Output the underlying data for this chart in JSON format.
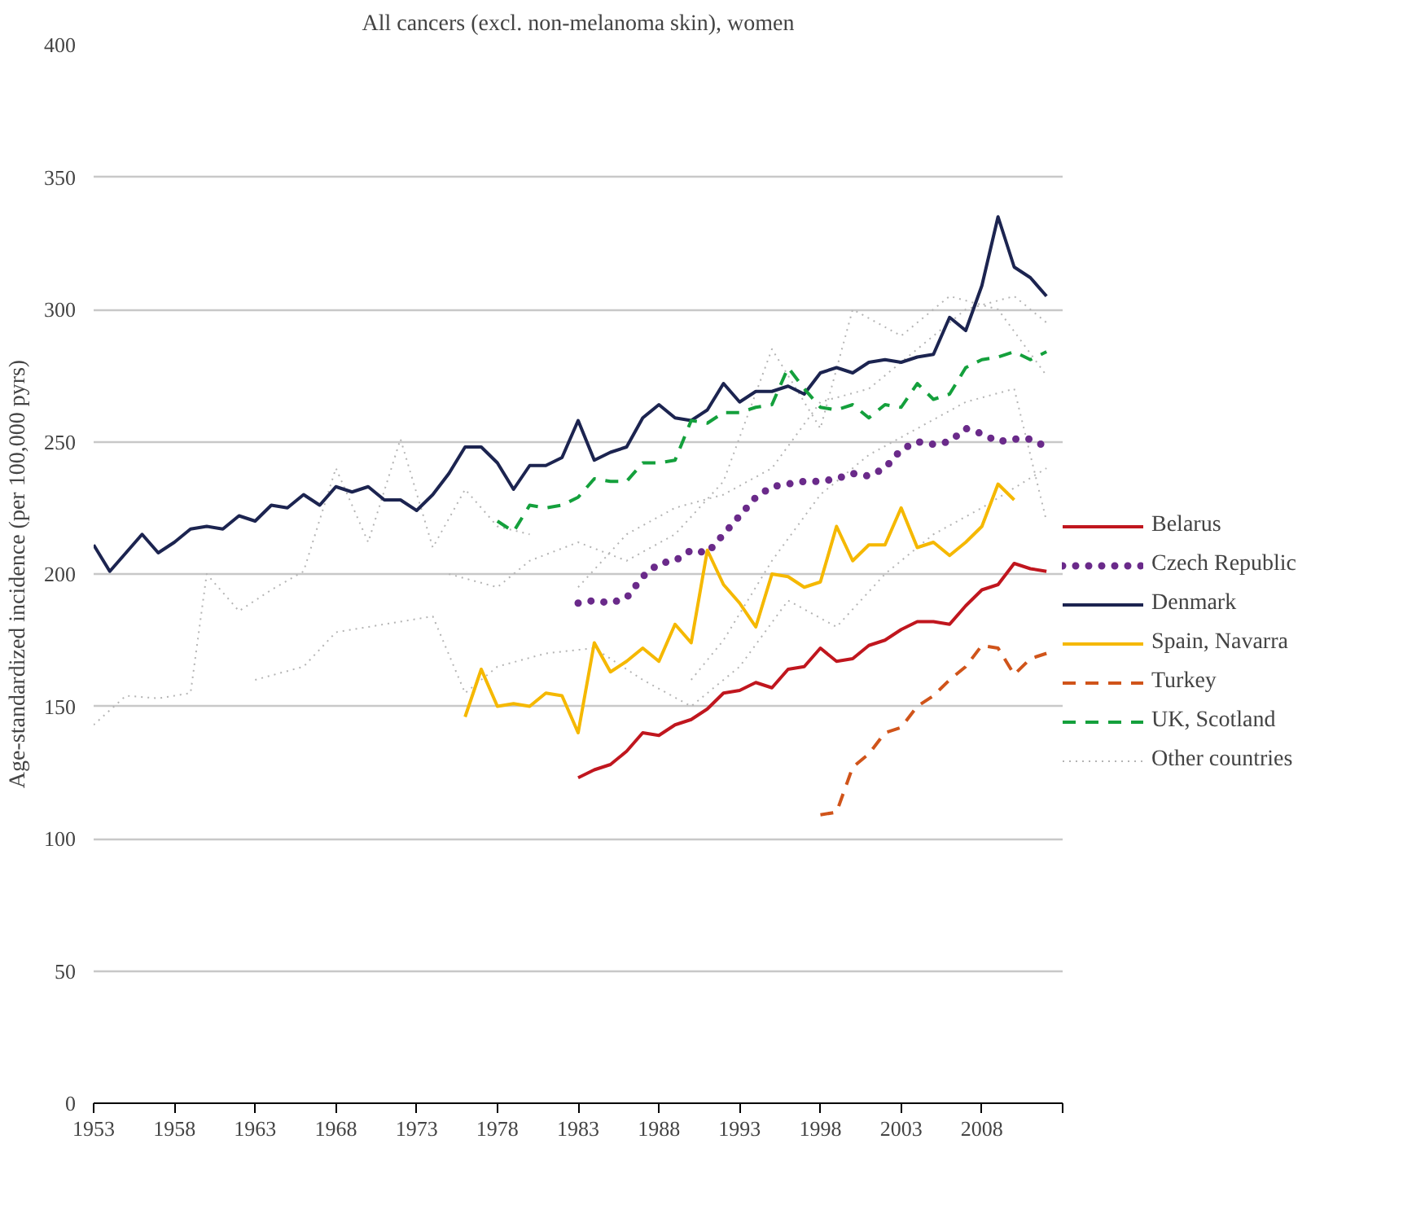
{
  "chart_data": {
    "type": "line",
    "title": "All cancers (excl. non-melanoma skin), women",
    "ylabel": "Age-standardized incidence (per 100,000 pyrs)",
    "xlim": [
      1953,
      2013
    ],
    "xticks": [
      1953,
      1958,
      1963,
      1968,
      1973,
      1978,
      1983,
      1988,
      1993,
      1998,
      2003,
      2008,
      {
        "value": 2013,
        "label": null
      }
    ],
    "ylim": [
      0,
      400
    ],
    "yticks": [
      0,
      50,
      100,
      150,
      200,
      250,
      300,
      350,
      400
    ],
    "grid": "y",
    "legend": "right",
    "marker": "none",
    "series": [
      {
        "name": "Other countries",
        "color": "#b4b4b4",
        "line_style": "dotted",
        "x": [
          1953,
          1955,
          1957,
          1959,
          1960,
          1962,
          1964,
          1966,
          1968,
          1970,
          1972,
          1974,
          1976,
          1978,
          1980
        ],
        "values": [
          143,
          154,
          153,
          155,
          200,
          186,
          194,
          201,
          240,
          212,
          251,
          210,
          232,
          218,
          215
        ]
      },
      {
        "color": "#b4b4b4",
        "line_style": "dotted",
        "x": [
          1963,
          1966,
          1968,
          1971,
          1974,
          1976,
          1978,
          1981,
          1984,
          1987,
          1990,
          1993,
          1996,
          1999,
          2002,
          2005,
          2008,
          2012
        ],
        "values": [
          160,
          165,
          178,
          181,
          184,
          155,
          165,
          170,
          172,
          160,
          150,
          165,
          190,
          180,
          200,
          215,
          225,
          240
        ]
      },
      {
        "color": "#b4b4b4",
        "line_style": "dotted",
        "x": [
          1975,
          1978,
          1980,
          1983,
          1986,
          1989,
          1992,
          1995,
          1998,
          2000,
          2003,
          2006,
          2009,
          2012
        ],
        "values": [
          200,
          195,
          205,
          212,
          205,
          215,
          235,
          285,
          255,
          300,
          290,
          305,
          300,
          275
        ]
      },
      {
        "color": "#b4b4b4",
        "line_style": "dotted",
        "x": [
          1983,
          1986,
          1989,
          1992,
          1995,
          1998,
          2001,
          2004,
          2007,
          2010,
          2012
        ],
        "values": [
          195,
          215,
          225,
          230,
          240,
          265,
          270,
          285,
          300,
          305,
          295
        ]
      },
      {
        "color": "#b4b4b4",
        "line_style": "dotted",
        "x": [
          1990,
          1992,
          1995,
          1998,
          2001,
          2004,
          2007,
          2010,
          2012
        ],
        "values": [
          160,
          175,
          205,
          230,
          245,
          255,
          265,
          270,
          220
        ]
      },
      {
        "name": "Belarus",
        "color": "#c0161e",
        "line_style": "solid",
        "x": [
          1983,
          1984,
          1985,
          1986,
          1987,
          1988,
          1989,
          1990,
          1991,
          1992,
          1993,
          1994,
          1995,
          1996,
          1997,
          1998,
          1999,
          2000,
          2001,
          2002,
          2003,
          2004,
          2005,
          2006,
          2007,
          2008,
          2009,
          2010,
          2011,
          2012
        ],
        "values": [
          123,
          126,
          128,
          133,
          140,
          139,
          143,
          145,
          149,
          155,
          156,
          159,
          157,
          164,
          165,
          172,
          167,
          168,
          173,
          175,
          179,
          182,
          182,
          181,
          188,
          194,
          196,
          204,
          202,
          201
        ]
      },
      {
        "name": "Czech Republic",
        "color": "#6a2a8a",
        "line_style": "dotted",
        "x": [
          1983,
          1984,
          1985,
          1986,
          1987,
          1988,
          1989,
          1990,
          1991,
          1992,
          1993,
          1994,
          1995,
          1996,
          1997,
          1998,
          1999,
          2000,
          2001,
          2002,
          2003,
          2004,
          2005,
          2006,
          2007,
          2008,
          2009,
          2010,
          2011,
          2012
        ],
        "values": [
          189,
          190,
          189,
          191,
          199,
          204,
          205,
          209,
          208,
          215,
          222,
          229,
          233,
          234,
          235,
          235,
          236,
          238,
          237,
          240,
          247,
          250,
          249,
          250,
          255,
          253,
          250,
          251,
          251,
          248
        ]
      },
      {
        "name": "Denmark",
        "color": "#1c2450",
        "line_style": "solid",
        "x": [
          1953,
          1954,
          1955,
          1956,
          1957,
          1958,
          1959,
          1960,
          1961,
          1962,
          1963,
          1964,
          1965,
          1966,
          1967,
          1968,
          1969,
          1970,
          1971,
          1972,
          1973,
          1974,
          1975,
          1976,
          1977,
          1978,
          1979,
          1980,
          1981,
          1982,
          1983,
          1984,
          1985,
          1986,
          1987,
          1988,
          1989,
          1990,
          1991,
          1992,
          1993,
          1994,
          1995,
          1996,
          1997,
          1998,
          1999,
          2000,
          2001,
          2002,
          2003,
          2004,
          2005,
          2006,
          2007,
          2008,
          2009,
          2010,
          2011,
          2012
        ],
        "values": [
          211,
          201,
          208,
          215,
          208,
          212,
          217,
          218,
          217,
          222,
          220,
          226,
          225,
          230,
          226,
          233,
          231,
          233,
          228,
          228,
          224,
          230,
          238,
          248,
          248,
          242,
          232,
          241,
          241,
          244,
          258,
          243,
          246,
          248,
          259,
          264,
          259,
          258,
          262,
          272,
          265,
          269,
          269,
          271,
          268,
          276,
          278,
          276,
          280,
          281,
          280,
          282,
          283,
          297,
          292,
          309,
          335,
          316,
          312,
          305
        ]
      },
      {
        "name": "Spain, Navarra",
        "color": "#f5b800",
        "line_style": "solid",
        "x": [
          1976,
          1977,
          1978,
          1979,
          1980,
          1981,
          1982,
          1983,
          1984,
          1985,
          1986,
          1987,
          1988,
          1989,
          1990,
          1991,
          1992,
          1993,
          1994,
          1995,
          1996,
          1997,
          1998,
          1999,
          2000,
          2001,
          2002,
          2003,
          2004,
          2005,
          2006,
          2007,
          2008,
          2009,
          2010
        ],
        "values": [
          146,
          164,
          150,
          151,
          150,
          155,
          154,
          140,
          174,
          163,
          167,
          172,
          167,
          181,
          174,
          209,
          196,
          189,
          180,
          200,
          199,
          195,
          197,
          218,
          205,
          211,
          211,
          225,
          210,
          212,
          207,
          212,
          218,
          234,
          228
        ]
      },
      {
        "name": "Turkey",
        "color": "#d0541a",
        "line_style": "dashed",
        "x": [
          1998,
          1999,
          2000,
          2001,
          2002,
          2003,
          2004,
          2005,
          2006,
          2007,
          2008,
          2009,
          2010,
          2011,
          2012
        ],
        "values": [
          109,
          110,
          127,
          132,
          140,
          142,
          150,
          154,
          160,
          165,
          173,
          172,
          162,
          168,
          170
        ]
      },
      {
        "name": "UK, Scotland",
        "color": "#14a03c",
        "line_style": "dashed",
        "x": [
          1978,
          1979,
          1980,
          1981,
          1982,
          1983,
          1984,
          1985,
          1986,
          1987,
          1988,
          1989,
          1990,
          1991,
          1992,
          1993,
          1994,
          1995,
          1996,
          1997,
          1998,
          1999,
          2000,
          2001,
          2002,
          2003,
          2004,
          2005,
          2006,
          2007,
          2008,
          2009,
          2010,
          2011,
          2012
        ],
        "values": [
          220,
          216,
          226,
          225,
          226,
          229,
          236,
          235,
          235,
          242,
          242,
          243,
          258,
          257,
          261,
          261,
          263,
          264,
          278,
          270,
          263,
          262,
          264,
          259,
          264,
          263,
          272,
          266,
          268,
          278,
          281,
          282,
          284,
          281,
          284
        ]
      }
    ]
  }
}
